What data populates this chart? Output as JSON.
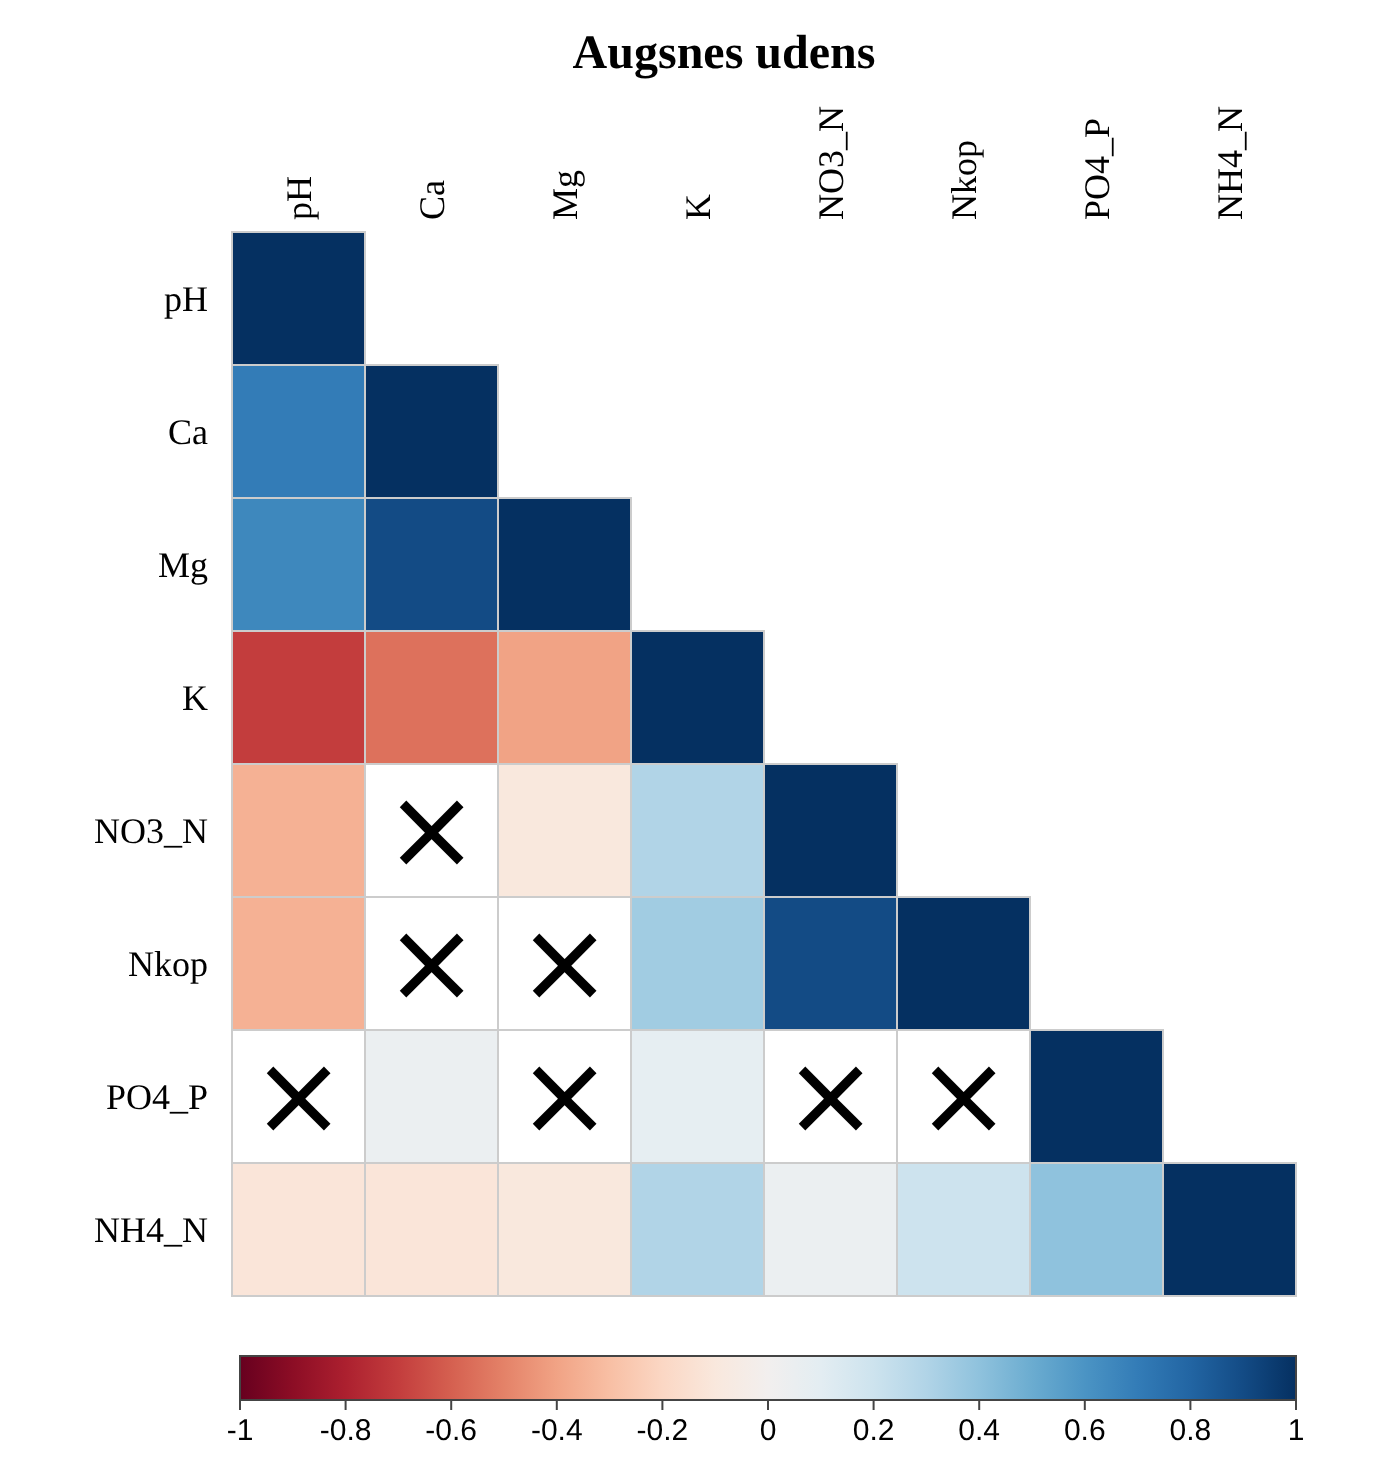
{
  "chart_data": {
    "type": "heatmap",
    "title": "Augsnes udens",
    "categories": [
      "pH",
      "Ca",
      "Mg",
      "K",
      "NO3_N",
      "Nkop",
      "PO4_P",
      "NH4_N"
    ],
    "y_categories": [
      "pH",
      "Ca",
      "Mg",
      "K",
      "NO3_N",
      "Nkop",
      "PO4_P",
      "NH4_N"
    ],
    "cells": [
      [
        1,
        null,
        null,
        null,
        null,
        null,
        null,
        null
      ],
      [
        0.7,
        1,
        null,
        null,
        null,
        null,
        null,
        null
      ],
      [
        0.65,
        0.9,
        1,
        null,
        null,
        null,
        null,
        null
      ],
      [
        -0.7,
        -0.55,
        -0.4,
        1,
        null,
        null,
        null,
        null
      ],
      [
        -0.35,
        null,
        -0.1,
        0.3,
        1,
        null,
        null,
        null
      ],
      [
        -0.35,
        null,
        null,
        0.35,
        0.9,
        1,
        null,
        null
      ],
      [
        null,
        0.05,
        null,
        0.08,
        null,
        null,
        1,
        null
      ],
      [
        -0.12,
        -0.12,
        -0.1,
        0.3,
        0.05,
        0.2,
        0.4,
        1
      ]
    ],
    "cell_labels": [
      [
        null,
        null,
        null,
        null,
        null,
        null,
        null,
        null
      ],
      [
        null,
        null,
        null,
        null,
        null,
        null,
        null,
        null
      ],
      [
        null,
        null,
        null,
        null,
        null,
        null,
        null,
        null
      ],
      [
        null,
        null,
        null,
        null,
        null,
        null,
        null,
        null
      ],
      [
        null,
        "×",
        null,
        null,
        null,
        null,
        null,
        null
      ],
      [
        null,
        "×",
        "×",
        null,
        null,
        null,
        null,
        null
      ],
      [
        "×",
        null,
        "×",
        null,
        "×",
        "×",
        null,
        null
      ],
      [
        null,
        null,
        null,
        null,
        null,
        null,
        null,
        null
      ]
    ],
    "clim": [
      -1,
      1
    ],
    "cticks": [
      -1,
      -0.8,
      -0.6,
      -0.4,
      -0.2,
      0,
      0.2,
      0.4,
      0.6,
      0.8,
      1
    ]
  }
}
